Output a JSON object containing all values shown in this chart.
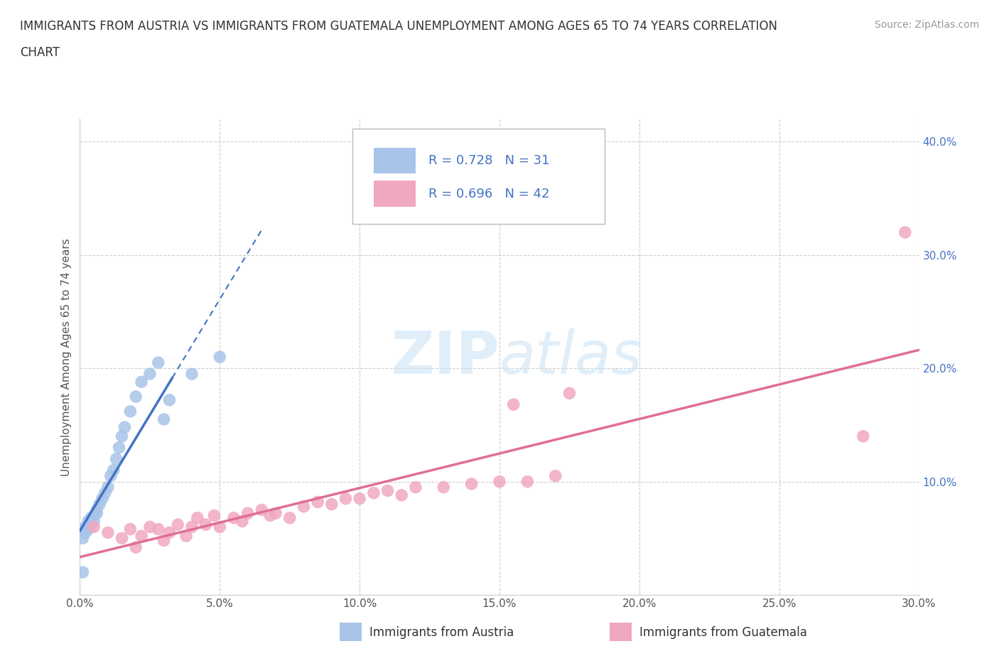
{
  "title_line1": "IMMIGRANTS FROM AUSTRIA VS IMMIGRANTS FROM GUATEMALA UNEMPLOYMENT AMONG AGES 65 TO 74 YEARS CORRELATION",
  "title_line2": "CHART",
  "source_text": "Source: ZipAtlas.com",
  "ylabel": "Unemployment Among Ages 65 to 74 years",
  "xlim": [
    0.0,
    0.3
  ],
  "ylim": [
    0.0,
    0.42
  ],
  "xticks": [
    0.0,
    0.05,
    0.1,
    0.15,
    0.2,
    0.25,
    0.3
  ],
  "yticks": [
    0.0,
    0.1,
    0.2,
    0.3,
    0.4
  ],
  "xtick_labels": [
    "0.0%",
    "5.0%",
    "10.0%",
    "15.0%",
    "20.0%",
    "25.0%",
    "30.0%"
  ],
  "ytick_labels": [
    "",
    "10.0%",
    "20.0%",
    "30.0%",
    "40.0%"
  ],
  "austria_color": "#a8c4e8",
  "guatemala_color": "#f0a8c0",
  "austria_line_color": "#4472c4",
  "guatemala_line_color": "#e07090",
  "watermark_zip": "ZIP",
  "watermark_atlas": "atlas",
  "background_color": "#ffffff",
  "grid_color": "#cccccc",
  "title_color": "#333333",
  "ytick_color": "#4472c4",
  "source_color": "#999999",
  "legend_text_color": "#4472c4",
  "austria_x": [
    0.001,
    0.002,
    0.002,
    0.003,
    0.003,
    0.004,
    0.004,
    0.005,
    0.005,
    0.006,
    0.006,
    0.007,
    0.008,
    0.009,
    0.01,
    0.011,
    0.012,
    0.013,
    0.014,
    0.015,
    0.016,
    0.018,
    0.02,
    0.022,
    0.025,
    0.028,
    0.03,
    0.032,
    0.04,
    0.05,
    0.001
  ],
  "austria_y": [
    0.05,
    0.055,
    0.06,
    0.058,
    0.065,
    0.062,
    0.068,
    0.065,
    0.07,
    0.072,
    0.075,
    0.08,
    0.085,
    0.09,
    0.095,
    0.105,
    0.11,
    0.12,
    0.13,
    0.14,
    0.148,
    0.162,
    0.175,
    0.188,
    0.195,
    0.205,
    0.155,
    0.172,
    0.195,
    0.21,
    0.02
  ],
  "guatemala_x": [
    0.005,
    0.01,
    0.015,
    0.018,
    0.02,
    0.022,
    0.025,
    0.028,
    0.03,
    0.032,
    0.035,
    0.038,
    0.04,
    0.042,
    0.045,
    0.048,
    0.05,
    0.055,
    0.058,
    0.06,
    0.065,
    0.068,
    0.07,
    0.075,
    0.08,
    0.085,
    0.09,
    0.095,
    0.1,
    0.105,
    0.11,
    0.115,
    0.12,
    0.13,
    0.14,
    0.15,
    0.155,
    0.16,
    0.17,
    0.175,
    0.28,
    0.295
  ],
  "guatemala_y": [
    0.06,
    0.055,
    0.05,
    0.058,
    0.042,
    0.052,
    0.06,
    0.058,
    0.048,
    0.055,
    0.062,
    0.052,
    0.06,
    0.068,
    0.062,
    0.07,
    0.06,
    0.068,
    0.065,
    0.072,
    0.075,
    0.07,
    0.072,
    0.068,
    0.078,
    0.082,
    0.08,
    0.085,
    0.085,
    0.09,
    0.092,
    0.088,
    0.095,
    0.095,
    0.098,
    0.1,
    0.168,
    0.1,
    0.105,
    0.178,
    0.14,
    0.32
  ]
}
